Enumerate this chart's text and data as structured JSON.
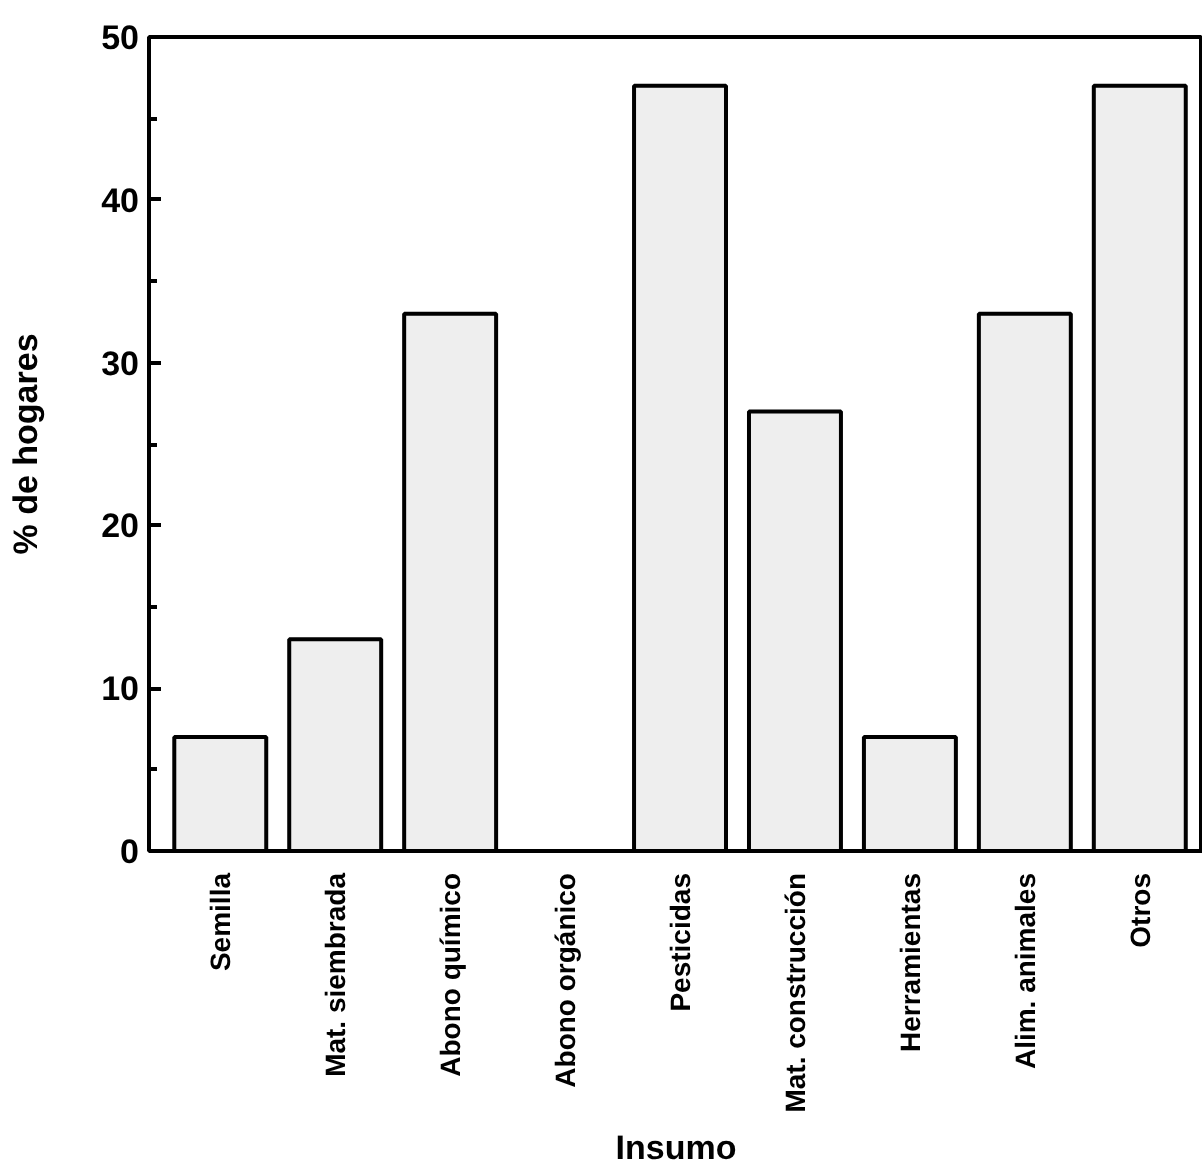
{
  "chart_data": {
    "type": "bar",
    "xlabel": "Insumo",
    "ylabel": "% de hogares",
    "categories": [
      "Semilla",
      "Mat. siembrada",
      "Abono químico",
      "Abono orgánico",
      "Pesticidas",
      "Mat. construcción",
      "Herramientas",
      "Alim. animales",
      "Otros"
    ],
    "values": [
      7,
      13,
      33,
      0,
      47,
      27,
      7,
      33,
      47
    ],
    "color": "#eeeeee",
    "ylim": [
      0,
      50
    ],
    "yticks": [
      0,
      10,
      20,
      30,
      40,
      50
    ],
    "grid": false
  }
}
